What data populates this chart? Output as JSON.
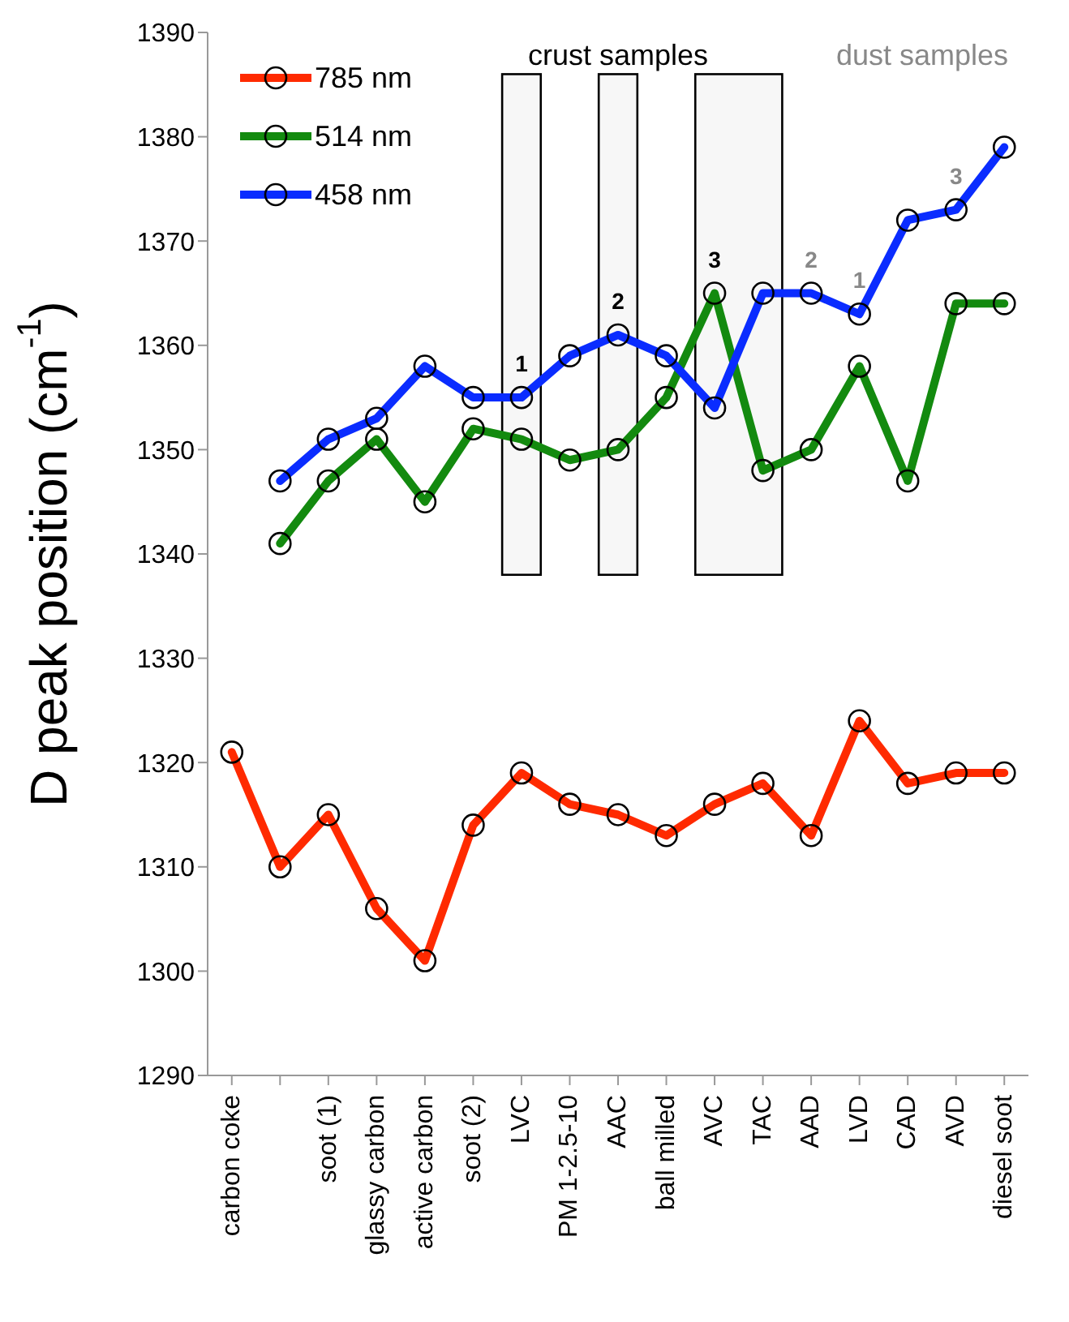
{
  "chart_data": {
    "type": "line",
    "ylabel": "D peak position (cm$^{-1}$)",
    "categories": [
      "carbon coke",
      null,
      "soot (1)",
      "glassy carbon",
      "active carbon",
      "soot (2)",
      "LVC",
      "PM 1-2.5-10",
      "AAC",
      "ball milled",
      "AVC",
      "TAC",
      "AAD",
      "LVD",
      "CAD",
      "AVD",
      "diesel soot"
    ],
    "series": [
      {
        "name": "785 nm",
        "color": "#ff2a00",
        "values": [
          1321,
          1310,
          1315,
          1306,
          1301,
          1314,
          1319,
          1316,
          1315,
          1313,
          1316,
          1318,
          1313,
          1324,
          1318,
          1319,
          1319
        ]
      },
      {
        "name": "514 nm",
        "color": "#138a0f",
        "values": [
          null,
          1341,
          1347,
          1351,
          1345,
          1352,
          1351,
          1349,
          1350,
          1355,
          1365,
          1348,
          1350,
          1358,
          1347,
          1364,
          1364
        ]
      },
      {
        "name": "458 nm",
        "color": "#0a2cff",
        "values": [
          null,
          1347,
          1351,
          1353,
          1358,
          1355,
          1355,
          1359,
          1361,
          1359,
          1354,
          1365,
          1365,
          1363,
          1372,
          1373,
          1379
        ]
      }
    ],
    "ylim": [
      1290,
      1390
    ],
    "yticks": [
      1290,
      1300,
      1310,
      1320,
      1330,
      1340,
      1350,
      1360,
      1370,
      1380,
      1390
    ],
    "grid": false,
    "legend": "top left",
    "marker": "circle",
    "line_style": "solid",
    "bands": [
      {
        "axis": "x",
        "from": "LVC",
        "to": "LVC",
        "color": "#f7f7f7"
      },
      {
        "axis": "x",
        "from": "AAC",
        "to": "AAC",
        "color": "#f7f7f7"
      },
      {
        "axis": "x",
        "from": "AVC",
        "to": "TAC",
        "color": "#f7f7f7"
      }
    ],
    "annotations": [
      "crust samples",
      "dust samples",
      {
        "text": "1",
        "x": "LVC",
        "y": 1355
      },
      {
        "text": "2",
        "x": "AAC",
        "y": 1361
      },
      {
        "text": "3",
        "x": "AVC",
        "y": 1365
      },
      {
        "text": "2",
        "x": "AAD",
        "y": 1365
      },
      {
        "text": "1",
        "x": "LVD",
        "y": 1363
      },
      {
        "text": "3",
        "x": "AVD",
        "y": 1373
      }
    ]
  }
}
